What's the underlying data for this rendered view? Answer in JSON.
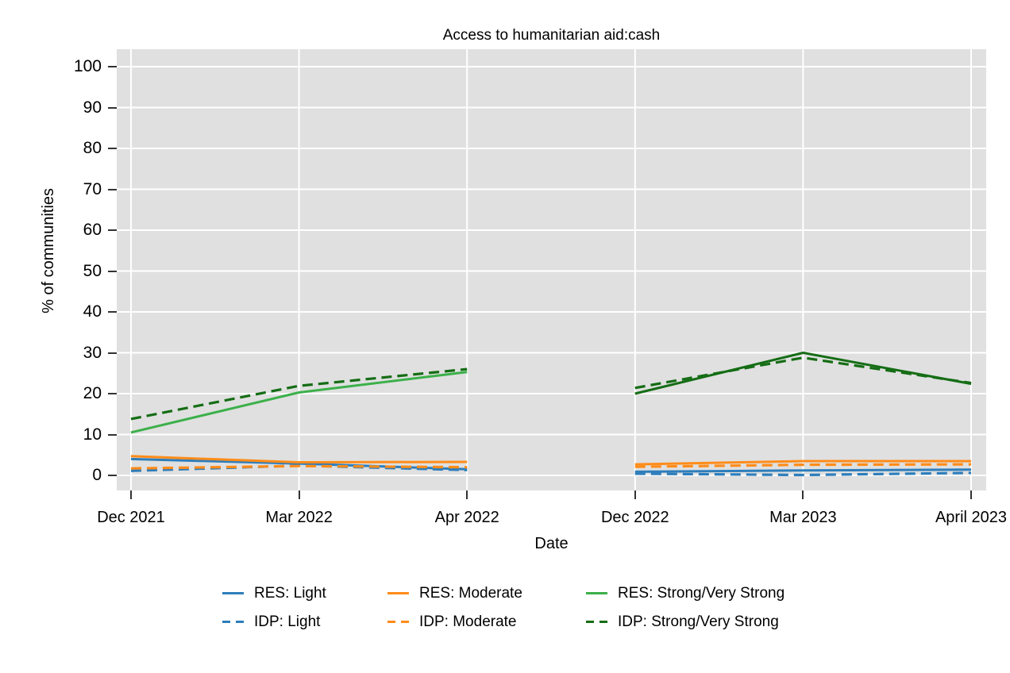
{
  "chart_data": {
    "type": "line",
    "title": "Access to humanitarian aid:cash",
    "xlabel": "Date",
    "ylabel": "% of communities",
    "ylim": [
      0,
      100
    ],
    "y_ticks": [
      0,
      10,
      20,
      30,
      40,
      50,
      60,
      70,
      80,
      90,
      100
    ],
    "x_categories": [
      "Dec 2021",
      "Mar 2022",
      "Apr 2022",
      "Dec 2022",
      "Mar 2023",
      "April 2023"
    ],
    "grid": true,
    "plot_background": "#e0e0e0",
    "gridline_color": "#ffffff",
    "legend_position": "bottom",
    "note": "Lines are drawn in two segments (Dec 2021-Apr 2022 and Dec 2022-April 2023) with a gap between Apr 2022 and Dec 2022",
    "series": [
      {
        "name": "RES: Light",
        "group": "RES",
        "style": "solid",
        "color": "#2e7ebb",
        "values_dec21_apr22": [
          4.0,
          2.9,
          1.5
        ],
        "values_dec22_apr23": [
          0.9,
          1.2,
          1.4
        ]
      },
      {
        "name": "RES: Moderate",
        "group": "RES",
        "style": "solid",
        "color": "#ff8c1a",
        "values_dec21_apr22": [
          4.7,
          3.2,
          3.3
        ],
        "values_dec22_apr23": [
          2.7,
          3.5,
          3.5
        ]
      },
      {
        "name": "RES: Strong/Very Strong",
        "group": "RES",
        "style": "solid",
        "color": "#3cb04a",
        "color_right": "#156d15",
        "values_dec21_apr22": [
          10.5,
          20.3,
          25.3
        ],
        "values_dec22_apr23": [
          20.0,
          30.0,
          22.4
        ]
      },
      {
        "name": "IDP: Light",
        "group": "IDP",
        "style": "dashed",
        "color": "#2e7ebb",
        "values_dec21_apr22": [
          1.1,
          2.4,
          1.3
        ],
        "values_dec22_apr23": [
          0.4,
          0.1,
          0.6
        ]
      },
      {
        "name": "IDP: Moderate",
        "group": "IDP",
        "style": "dashed",
        "color": "#ff8c1a",
        "values_dec21_apr22": [
          1.7,
          2.3,
          2.0
        ],
        "values_dec22_apr23": [
          2.1,
          2.6,
          2.7
        ]
      },
      {
        "name": "IDP: Strong/Very Strong",
        "group": "IDP",
        "style": "dashed",
        "color": "#156d15",
        "values_dec21_apr22": [
          13.8,
          21.9,
          26.0
        ],
        "values_dec22_apr23": [
          21.4,
          28.8,
          22.6
        ]
      }
    ]
  }
}
